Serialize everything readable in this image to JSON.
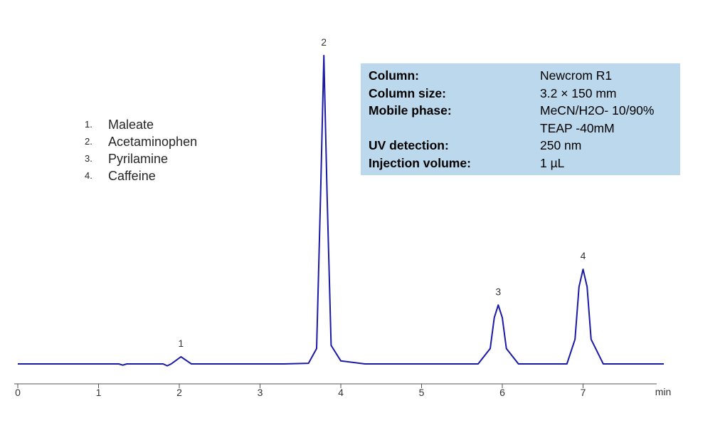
{
  "chart_data": {
    "type": "line",
    "xlabel": "min",
    "xlim": [
      0,
      8
    ],
    "x_ticks": [
      "0",
      "1",
      "2",
      "3",
      "4",
      "5",
      "6",
      "7"
    ],
    "peaks": [
      {
        "label": "1",
        "retention_time_min": 2.02,
        "relative_height": 0.023
      },
      {
        "label": "2",
        "retention_time_min": 3.79,
        "relative_height": 1.0
      },
      {
        "label": "3",
        "retention_time_min": 5.95,
        "relative_height": 0.191
      },
      {
        "label": "4",
        "retention_time_min": 7.0,
        "relative_height": 0.307
      }
    ],
    "series": [
      {
        "color": "#1a1aa6",
        "x": [
          0,
          1.25,
          1.3,
          1.35,
          1.8,
          1.85,
          1.9,
          2.02,
          2.15,
          3.3,
          3.6,
          3.7,
          3.75,
          3.79,
          3.83,
          3.88,
          4.0,
          4.3,
          5.7,
          5.85,
          5.9,
          5.95,
          6.0,
          6.05,
          6.2,
          6.8,
          6.9,
          6.95,
          7.0,
          7.05,
          7.1,
          7.25,
          8.0
        ],
        "y": [
          0,
          0,
          -0.004,
          0,
          0,
          -0.006,
          0,
          0.023,
          0,
          0,
          0.002,
          0.05,
          0.55,
          1.0,
          0.55,
          0.06,
          0.01,
          0,
          0,
          0.05,
          0.15,
          0.191,
          0.15,
          0.05,
          0,
          0,
          0.08,
          0.25,
          0.307,
          0.25,
          0.08,
          0,
          0
        ]
      }
    ]
  },
  "legend_items": [
    {
      "num": "1.",
      "name": "Maleate"
    },
    {
      "num": "2.",
      "name": "Acetaminophen"
    },
    {
      "num": "3.",
      "name": "Pyrilamine"
    },
    {
      "num": "4.",
      "name": "Caffeine"
    }
  ],
  "conditions": [
    {
      "label": "Column:",
      "value": "Newcrom R1"
    },
    {
      "label": "Column size:",
      "value": "3.2 × 150 mm"
    },
    {
      "label": "Mobile phase:",
      "value": "MeCN/H2O- 10/90%"
    },
    {
      "label": "",
      "value": "TEAP -40mM"
    },
    {
      "label": "UV detection:",
      "value": "250 nm"
    },
    {
      "label": "Injection volume:",
      "value": "1 µL"
    }
  ],
  "colors": {
    "trace": "#1a1aa6",
    "info_box": "#bcd8ec",
    "axis": "#555555"
  }
}
